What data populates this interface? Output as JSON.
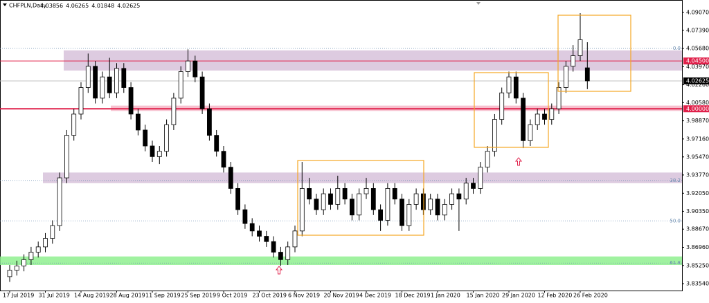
{
  "chart_data": {
    "type": "candlestick",
    "title": "CHFPLN,Daily",
    "ylim": [
      3.8289,
      4.1024
    ],
    "yticks": [
      {
        "value": 4.0907,
        "label": "4.09070"
      },
      {
        "value": 4.0739,
        "label": "4.07390"
      },
      {
        "value": 4.0568,
        "label": "4.05680"
      },
      {
        "value": 4.0397,
        "label": "4.03970"
      },
      {
        "value": 4.0226,
        "label": "4.02260"
      },
      {
        "value": 4.0058,
        "label": "4.00580"
      },
      {
        "value": 3.9887,
        "label": "3.98870"
      },
      {
        "value": 3.9716,
        "label": "3.97160"
      },
      {
        "value": 3.9547,
        "label": "3.95470"
      },
      {
        "value": 3.9377,
        "label": "3.93770"
      },
      {
        "value": 3.9205,
        "label": "3.92050"
      },
      {
        "value": 3.9035,
        "label": "3.90350"
      },
      {
        "value": 3.8867,
        "label": "3.88670"
      },
      {
        "value": 3.8696,
        "label": "3.86960"
      },
      {
        "value": 3.8525,
        "label": "3.85250"
      },
      {
        "value": 3.8354,
        "label": "3.83540"
      }
    ],
    "categories": [
      "17 Jul 2019",
      null,
      null,
      null,
      null,
      "31 Jul 2019",
      null,
      null,
      null,
      null,
      "14 Aug 2019",
      null,
      null,
      null,
      null,
      "28 Aug 2019",
      null,
      null,
      null,
      null,
      "11 Sep 2019",
      null,
      null,
      null,
      null,
      "25 Sep 2019",
      null,
      null,
      null,
      null,
      "9 Oct 2019",
      null,
      null,
      null,
      null,
      "23 Oct 2019",
      null,
      null,
      null,
      null,
      "6 Nov 2019",
      null,
      null,
      null,
      null,
      "20 Nov 2019",
      null,
      null,
      null,
      null,
      "4 Dec 2019",
      null,
      null,
      null,
      null,
      "18 Dec 2019",
      null,
      null,
      null,
      null,
      "1 Jan 2020",
      null,
      null,
      null,
      null,
      "15 Jan 2020",
      null,
      null,
      null,
      null,
      "29 Jan 2020",
      null,
      null,
      null,
      null,
      "12 Feb 2020",
      null,
      null,
      null,
      null,
      "26 Feb 2020",
      null
    ],
    "candles": [
      [
        3.842,
        3.853,
        3.837,
        3.848
      ],
      [
        3.848,
        3.857,
        3.843,
        3.852
      ],
      [
        3.852,
        3.863,
        3.847,
        3.858
      ],
      [
        3.858,
        3.87,
        3.853,
        3.865
      ],
      [
        3.865,
        3.875,
        3.86,
        3.87
      ],
      [
        3.87,
        3.883,
        3.865,
        3.878
      ],
      [
        3.878,
        3.895,
        3.873,
        3.89
      ],
      [
        3.89,
        3.94,
        3.885,
        3.935
      ],
      [
        3.935,
        3.98,
        3.93,
        3.975
      ],
      [
        3.975,
        4.0,
        3.97,
        3.995
      ],
      [
        3.995,
        4.025,
        3.99,
        4.02
      ],
      [
        4.02,
        4.052,
        4.015,
        4.04
      ],
      [
        4.04,
        4.045,
        4.005,
        4.01
      ],
      [
        4.01,
        4.035,
        4.005,
        4.03
      ],
      [
        4.03,
        4.048,
        4.01,
        4.015
      ],
      [
        4.015,
        4.043,
        4.01,
        4.038
      ],
      [
        4.038,
        4.043,
        4.015,
        4.02
      ],
      [
        4.02,
        4.025,
        3.99,
        3.995
      ],
      [
        3.995,
        4.0,
        3.975,
        3.98
      ],
      [
        3.98,
        3.985,
        3.96,
        3.965
      ],
      [
        3.965,
        3.97,
        3.95,
        3.955
      ],
      [
        3.955,
        3.965,
        3.948,
        3.96
      ],
      [
        3.96,
        3.99,
        3.955,
        3.985
      ],
      [
        3.985,
        4.015,
        3.98,
        4.01
      ],
      [
        4.01,
        4.04,
        4.005,
        4.035
      ],
      [
        4.035,
        4.056,
        4.03,
        4.045
      ],
      [
        4.045,
        4.05,
        4.025,
        4.03
      ],
      [
        4.03,
        4.035,
        3.995,
        4.0
      ],
      [
        4.0,
        4.005,
        3.97,
        3.975
      ],
      [
        3.975,
        3.98,
        3.955,
        3.96
      ],
      [
        3.96,
        3.965,
        3.94,
        3.945
      ],
      [
        3.945,
        3.95,
        3.92,
        3.925
      ],
      [
        3.925,
        3.93,
        3.9,
        3.905
      ],
      [
        3.905,
        3.91,
        3.887,
        3.892
      ],
      [
        3.892,
        3.897,
        3.88,
        3.885
      ],
      [
        3.885,
        3.89,
        3.875,
        3.88
      ],
      [
        3.88,
        3.885,
        3.87,
        3.875
      ],
      [
        3.875,
        3.88,
        3.86,
        3.865
      ],
      [
        3.865,
        3.87,
        3.852,
        3.858
      ],
      [
        3.858,
        3.875,
        3.853,
        3.87
      ],
      [
        3.87,
        3.89,
        3.865,
        3.885
      ],
      [
        3.885,
        3.95,
        3.88,
        3.925
      ],
      [
        3.925,
        3.935,
        3.91,
        3.915
      ],
      [
        3.915,
        3.92,
        3.9,
        3.905
      ],
      [
        3.905,
        3.925,
        3.9,
        3.92
      ],
      [
        3.92,
        3.925,
        3.905,
        3.91
      ],
      [
        3.91,
        3.937,
        3.905,
        3.925
      ],
      [
        3.925,
        3.93,
        3.91,
        3.915
      ],
      [
        3.915,
        3.92,
        3.895,
        3.9
      ],
      [
        3.9,
        3.925,
        3.895,
        3.92
      ],
      [
        3.92,
        3.935,
        3.915,
        3.925
      ],
      [
        3.925,
        3.93,
        3.9,
        3.905
      ],
      [
        3.905,
        3.91,
        3.885,
        3.895
      ],
      [
        3.895,
        3.93,
        3.89,
        3.925
      ],
      [
        3.925,
        3.93,
        3.91,
        3.915
      ],
      [
        3.915,
        3.92,
        3.885,
        3.89
      ],
      [
        3.89,
        3.915,
        3.885,
        3.91
      ],
      [
        3.91,
        3.925,
        3.905,
        3.92
      ],
      [
        3.92,
        3.925,
        3.9,
        3.905
      ],
      [
        3.905,
        3.92,
        3.9,
        3.915
      ],
      [
        3.915,
        3.92,
        3.895,
        3.9
      ],
      [
        3.9,
        3.915,
        3.895,
        3.91
      ],
      [
        3.91,
        3.925,
        3.905,
        3.92
      ],
      [
        3.92,
        3.925,
        3.885,
        3.915
      ],
      [
        3.915,
        3.935,
        3.91,
        3.93
      ],
      [
        3.93,
        3.935,
        3.92,
        3.925
      ],
      [
        3.925,
        3.95,
        3.92,
        3.945
      ],
      [
        3.945,
        3.965,
        3.94,
        3.96
      ],
      [
        3.96,
        3.995,
        3.955,
        3.99
      ],
      [
        3.99,
        4.02,
        3.985,
        4.015
      ],
      [
        4.015,
        4.035,
        4.01,
        4.03
      ],
      [
        4.03,
        4.035,
        4.005,
        4.01
      ],
      [
        4.01,
        4.015,
        3.963,
        3.97
      ],
      [
        3.97,
        3.99,
        3.965,
        3.985
      ],
      [
        3.985,
        4.0,
        3.98,
        3.995
      ],
      [
        3.995,
        4.0,
        3.985,
        3.99
      ],
      [
        3.99,
        4.005,
        3.985,
        4.0
      ],
      [
        4.0,
        4.025,
        3.995,
        4.02
      ],
      [
        4.02,
        4.045,
        4.015,
        4.04
      ],
      [
        4.04,
        4.06,
        4.035,
        4.05
      ],
      [
        4.05,
        4.09,
        4.045,
        4.065
      ],
      [
        4.03856,
        4.06265,
        4.01848,
        4.02625
      ]
    ],
    "zones": [
      {
        "from": 4.036,
        "to": 4.055,
        "color": "#d7c2da"
      },
      {
        "from": 3.998,
        "to": 4.003,
        "color": "#f6b5c5"
      },
      {
        "from": 3.93,
        "to": 3.94,
        "color": "#d7c2da"
      },
      {
        "from": 3.853,
        "to": 3.861,
        "color": "#8ff08f"
      }
    ],
    "levels": [
      {
        "value": 4.045,
        "label": "4.04500",
        "color": "#e0204a"
      },
      {
        "value": 4.0,
        "label": "4.00000",
        "color": "#e0204a"
      }
    ],
    "fibonacci": {
      "labels": [
        "0.0",
        "38.2",
        "50.0",
        "61.8"
      ],
      "prices": [
        4.0568,
        3.9325,
        3.8945,
        3.8548
      ],
      "color": "#6a8cb0"
    }
  }
}
